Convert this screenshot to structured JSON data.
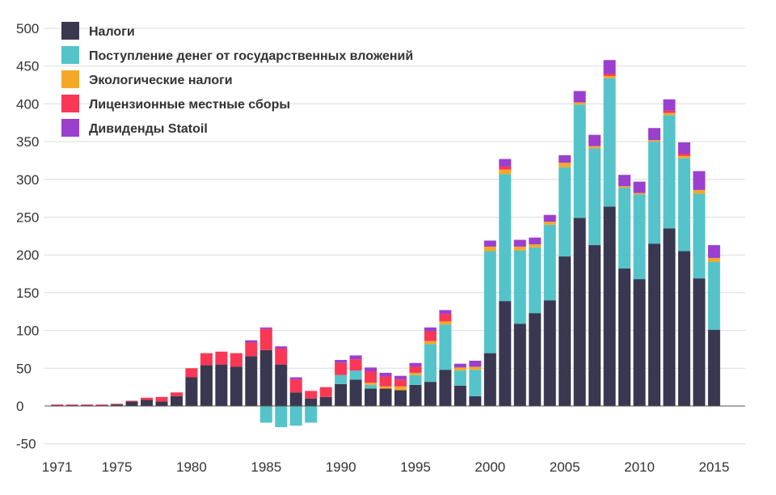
{
  "chart_data": {
    "type": "bar",
    "stacked": true,
    "xlim": [
      1971,
      2016
    ],
    "ylim": [
      -50,
      500
    ],
    "y_ticks": [
      -50,
      0,
      50,
      100,
      150,
      200,
      250,
      300,
      350,
      400,
      450,
      500
    ],
    "x_ticks": [
      1971,
      1975,
      1980,
      1985,
      1990,
      1995,
      2000,
      2005,
      2010,
      2015
    ],
    "grid": true,
    "legend_position": "top-left",
    "x": [
      1971,
      1972,
      1973,
      1974,
      1975,
      1976,
      1977,
      1978,
      1979,
      1980,
      1981,
      1982,
      1983,
      1984,
      1985,
      1986,
      1987,
      1988,
      1989,
      1990,
      1991,
      1992,
      1993,
      1994,
      1995,
      1996,
      1997,
      1998,
      1999,
      2000,
      2001,
      2002,
      2003,
      2004,
      2005,
      2006,
      2007,
      2008,
      2009,
      2010,
      2011,
      2012,
      2013,
      2014,
      2015,
      2016
    ],
    "series": [
      {
        "name": "Налоги",
        "color": "#3a3750",
        "values": [
          1,
          1,
          1,
          1,
          2,
          6,
          8,
          6,
          13,
          38,
          54,
          55,
          52,
          66,
          74,
          55,
          18,
          10,
          12,
          29,
          35,
          23,
          23,
          21,
          28,
          32,
          48,
          27,
          13,
          70,
          139,
          109,
          123,
          140,
          198,
          249,
          213,
          264,
          182,
          168,
          215,
          235,
          205,
          169,
          101,
          0
        ]
      },
      {
        "name": "Поступление денег от государственных вложений",
        "color": "#55c3ca",
        "values": [
          0,
          0,
          0,
          0,
          0,
          0,
          0,
          0,
          0,
          0,
          0,
          0,
          0,
          0,
          -22,
          -28,
          -26,
          -22,
          0,
          12,
          12,
          5,
          0,
          0,
          13,
          50,
          60,
          20,
          35,
          135,
          168,
          97,
          87,
          100,
          118,
          150,
          128,
          170,
          107,
          112,
          135,
          150,
          123,
          112,
          90,
          0
        ]
      },
      {
        "name": "Экологические налоги",
        "color": "#f5a827",
        "values": [
          0,
          0,
          0,
          0,
          0,
          0,
          0,
          0,
          0,
          0,
          0,
          0,
          0,
          0,
          0,
          0,
          0,
          0,
          0,
          0,
          0,
          3,
          3,
          5,
          3,
          4,
          4,
          4,
          4,
          6,
          6,
          5,
          4,
          4,
          6,
          3,
          3,
          3,
          2,
          2,
          2,
          3,
          3,
          5,
          5,
          0
        ]
      },
      {
        "name": "Лицензионные местные сборы",
        "color": "#fa3754",
        "values": [
          1,
          1,
          1,
          1,
          1,
          1,
          3,
          6,
          5,
          12,
          16,
          17,
          18,
          18,
          28,
          21,
          17,
          10,
          13,
          16,
          15,
          15,
          13,
          9,
          8,
          13,
          10,
          0,
          0,
          0,
          4,
          0,
          0,
          0,
          0,
          0,
          0,
          3,
          0,
          0,
          0,
          3,
          3,
          0,
          0,
          0
        ]
      },
      {
        "name": "Дивиденды  Statoil",
        "color": "#9b3fcf",
        "values": [
          0,
          0,
          0,
          0,
          0,
          0,
          0,
          0,
          0,
          0,
          0,
          0,
          0,
          3,
          2,
          3,
          3,
          0,
          0,
          4,
          5,
          5,
          5,
          5,
          5,
          5,
          5,
          5,
          8,
          8,
          10,
          9,
          9,
          9,
          10,
          15,
          15,
          18,
          15,
          15,
          16,
          15,
          15,
          25,
          17,
          0
        ]
      }
    ]
  }
}
